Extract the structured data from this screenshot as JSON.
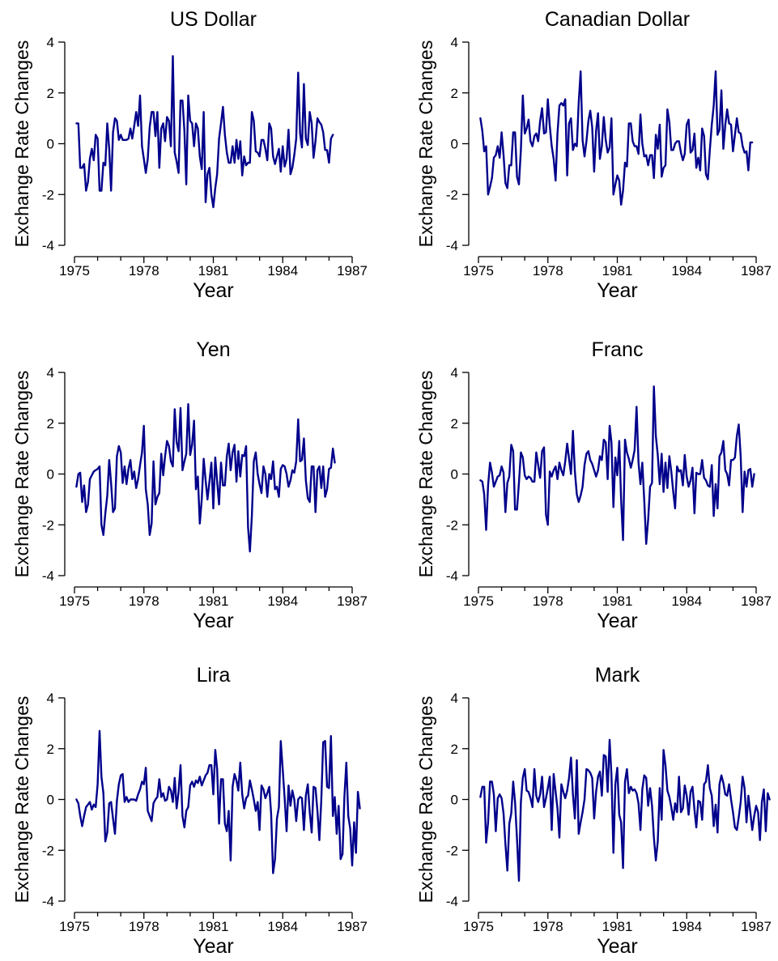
{
  "colors": {
    "series": "#00008b",
    "axis": "#000000"
  },
  "chart_data": [
    {
      "type": "line",
      "title": "US Dollar",
      "xlabel": "Year",
      "ylabel": "Exchange Rate Changes",
      "xlim": [
        1975,
        1987
      ],
      "ylim": [
        -4,
        4
      ],
      "grid": false,
      "xticks": [
        1975,
        1978,
        1981,
        1984,
        1987
      ],
      "yticks": [
        -4,
        -2,
        0,
        2,
        4
      ],
      "series": [
        {
          "x_start": 1975.083,
          "x_step": 0.08333,
          "values": [
            0.8,
            0.8,
            -0.95,
            -0.95,
            -0.8,
            -1.85,
            -1.5,
            -0.6,
            -0.2,
            -0.65,
            0.35,
            0.2,
            -1.85,
            -1.85,
            -0.75,
            -0.85,
            0.8,
            -0.2,
            -1.85,
            0.45,
            1.0,
            0.9,
            0.15,
            0.35,
            0.15,
            0.15,
            0.15,
            0.2,
            0.6,
            0.2,
            0.7,
            1.25,
            0.7,
            1.9,
            -0.1,
            -0.6,
            -1.15,
            -0.6,
            0.65,
            1.25,
            1.25,
            0.3,
            1.25,
            -0.95,
            0.6,
            0.8,
            0.1,
            1.05,
            0.9,
            -0.1,
            3.45,
            -0.35,
            -0.7,
            -1.15,
            1.7,
            1.7,
            0.5,
            -1.6,
            1.9,
            0.9,
            0.8,
            -0.1,
            0.8,
            0.6,
            -0.5,
            -1.0,
            1.25,
            -2.3,
            -1.2,
            -0.95,
            -2.0,
            -2.5,
            -1.75,
            -1.2,
            0.2,
            0.8,
            1.45,
            0.35,
            -0.35,
            -0.75,
            -0.75,
            -0.1,
            -0.75,
            0.15,
            -0.6,
            0.1,
            -1.25,
            -0.5,
            -0.85,
            -0.75,
            -0.75,
            1.25,
            0.9,
            -0.3,
            -0.35,
            -0.5,
            0.15,
            0.15,
            -0.2,
            -0.65,
            0.8,
            0.6,
            -0.5,
            -0.8,
            -0.5,
            -0.2,
            -1.1,
            -0.1,
            -0.9,
            -0.6,
            0.55,
            -1.2,
            -0.95,
            -0.45,
            0.2,
            2.8,
            0.4,
            -0.15,
            2.35,
            0.2,
            -0.05,
            1.25,
            0.8,
            -0.55,
            0.1,
            1.0,
            0.85,
            0.75,
            0.45,
            -0.25,
            -0.25,
            -0.75,
            0.2,
            0.35
          ]
        }
      ]
    },
    {
      "type": "line",
      "title": "Canadian Dollar",
      "xlabel": "Year",
      "ylabel": "Exchange Rate Changes",
      "xlim": [
        1975,
        1987
      ],
      "ylim": [
        -4,
        4
      ],
      "grid": false,
      "xticks": [
        1975,
        1978,
        1981,
        1984,
        1987
      ],
      "yticks": [
        -4,
        -2,
        0,
        2,
        4
      ],
      "series": [
        {
          "x_start": 1975.083,
          "x_step": 0.08333,
          "values": [
            1.0,
            0.5,
            -0.3,
            -0.1,
            -2.0,
            -1.7,
            -1.35,
            -0.55,
            -0.45,
            -0.1,
            -0.55,
            0.45,
            -0.45,
            -1.55,
            -1.75,
            -0.85,
            -0.85,
            0.45,
            0.45,
            -1.3,
            -1.6,
            -0.25,
            1.9,
            0.4,
            0.6,
            0.95,
            0.1,
            -0.1,
            0.3,
            0.4,
            0.1,
            0.9,
            1.4,
            0.4,
            0.45,
            1.75,
            0.7,
            -0.1,
            -0.6,
            -1.45,
            0.4,
            1.5,
            1.6,
            1.5,
            1.75,
            -1.25,
            0.8,
            1.0,
            -0.25,
            0.0,
            -0.1,
            1.6,
            2.85,
            0.15,
            -0.5,
            0.1,
            0.9,
            1.3,
            0.65,
            -1.1,
            0.5,
            1.2,
            -0.6,
            -0.1,
            1.05,
            0.15,
            -0.35,
            -0.15,
            1.0,
            -2.0,
            -1.6,
            -1.25,
            -1.45,
            -2.4,
            -1.85,
            -0.75,
            -0.9,
            0.8,
            0.8,
            0.1,
            -0.1,
            -0.1,
            -0.4,
            1.15,
            0.0,
            -0.5,
            -0.45,
            -0.85,
            -0.45,
            -0.45,
            -1.35,
            0.35,
            -0.2,
            0.75,
            -1.3,
            -0.95,
            -0.85,
            1.35,
            0.85,
            -0.25,
            -0.25,
            0.0,
            0.1,
            0.1,
            -0.35,
            -0.65,
            -0.4,
            0.75,
            0.95,
            -0.35,
            -0.25,
            0.4,
            -0.95,
            -0.55,
            -1.05,
            0.6,
            0.3,
            -1.2,
            -1.4,
            -0.25,
            0.75,
            1.5,
            2.85,
            0.35,
            0.55,
            2.1,
            -0.2,
            0.75,
            1.35,
            0.8,
            0.75,
            -0.3,
            0.35,
            1.0,
            0.45,
            0.4,
            -0.1,
            -0.35,
            -0.3,
            -1.05,
            0.05,
            0.05
          ]
        }
      ]
    },
    {
      "type": "line",
      "title": "Yen",
      "xlabel": "Year",
      "ylabel": "Exchange Rate Changes",
      "xlim": [
        1975,
        1987
      ],
      "ylim": [
        -4,
        4
      ],
      "grid": false,
      "xticks": [
        1975,
        1978,
        1981,
        1984,
        1987
      ],
      "yticks": [
        -4,
        -2,
        0,
        2,
        4
      ],
      "series": [
        {
          "x_start": 1975.083,
          "x_step": 0.08333,
          "values": [
            -0.5,
            0.0,
            0.05,
            -1.1,
            -0.45,
            -1.5,
            -1.2,
            -0.2,
            -0.05,
            0.1,
            0.15,
            0.2,
            0.3,
            -2.0,
            -2.4,
            -1.55,
            -0.85,
            0.55,
            -0.35,
            -1.5,
            -1.35,
            0.7,
            1.1,
            0.85,
            -0.35,
            0.3,
            -0.4,
            0.2,
            0.55,
            -0.2,
            0.1,
            -0.55,
            -0.2,
            0.35,
            0.85,
            1.9,
            -0.6,
            -1.2,
            -2.4,
            -1.95,
            0.5,
            -1.2,
            -0.9,
            -0.75,
            0.8,
            -0.05,
            0.7,
            1.3,
            1.1,
            0.5,
            0.3,
            2.55,
            1.25,
            0.9,
            2.6,
            0.15,
            0.5,
            0.8,
            2.75,
            0.75,
            1.15,
            2.1,
            -0.6,
            -0.1,
            -1.95,
            -1.0,
            0.6,
            -0.25,
            -1.0,
            -0.3,
            0.45,
            -1.35,
            0.65,
            -0.3,
            -1.2,
            0.45,
            -0.45,
            -0.45,
            0.7,
            1.2,
            0.15,
            0.85,
            1.15,
            -0.3,
            0.9,
            -0.1,
            0.75,
            0.7,
            1.1,
            -2.1,
            -3.05,
            -1.65,
            0.5,
            0.85,
            0.0,
            -0.4,
            -0.75,
            0.3,
            0.0,
            -0.9,
            0.0,
            -0.2,
            0.5,
            -0.6,
            -0.5,
            -0.9,
            0.2,
            0.35,
            0.3,
            0.0,
            -0.5,
            -0.25,
            0.15,
            0.05,
            0.5,
            2.15,
            0.5,
            0.55,
            1.4,
            -0.25,
            -0.95,
            -1.1,
            0.3,
            0.3,
            -1.5,
            0.15,
            0.3,
            -0.55,
            0.3,
            -0.9,
            -0.6,
            0.2,
            0.25,
            1.0,
            0.45
          ]
        }
      ]
    },
    {
      "type": "line",
      "title": "Franc",
      "xlabel": "Year",
      "ylabel": "Exchange Rate Changes",
      "xlim": [
        1975,
        1987
      ],
      "ylim": [
        -4,
        4
      ],
      "grid": false,
      "xticks": [
        1975,
        1978,
        1981,
        1984,
        1987
      ],
      "yticks": [
        -4,
        -2,
        0,
        2,
        4
      ],
      "series": [
        {
          "x_start": 1975.083,
          "x_step": 0.08333,
          "values": [
            -0.25,
            -0.3,
            -0.8,
            -2.2,
            -0.45,
            0.45,
            0.05,
            -0.5,
            -0.3,
            -0.1,
            -0.05,
            0.3,
            0.05,
            -1.5,
            -0.35,
            -0.1,
            1.15,
            0.9,
            -1.4,
            -1.4,
            -0.35,
            0.85,
            0.65,
            -0.05,
            -0.2,
            -0.1,
            -0.15,
            -0.3,
            -0.3,
            0.85,
            0.35,
            -0.15,
            0.9,
            1.05,
            -1.6,
            -2.0,
            0.1,
            -0.1,
            0.15,
            0.3,
            -0.2,
            0.45,
            0.15,
            -0.05,
            0.5,
            1.2,
            0.6,
            0.0,
            1.7,
            0.1,
            -0.8,
            -1.1,
            -0.85,
            -0.5,
            0.35,
            0.8,
            0.9,
            0.55,
            0.4,
            0.15,
            -0.1,
            0.15,
            0.7,
            0.55,
            1.35,
            1.25,
            -0.2,
            1.9,
            1.25,
            -1.3,
            0.65,
            -0.05,
            1.3,
            -1.0,
            -2.6,
            1.35,
            0.85,
            0.6,
            0.25,
            0.55,
            0.95,
            2.65,
            0.45,
            -0.4,
            0.45,
            -1.05,
            -2.75,
            -1.8,
            -0.5,
            -0.35,
            3.45,
            1.5,
            0.75,
            -0.4,
            0.8,
            -0.7,
            0.45,
            -0.55,
            0.7,
            0.1,
            -0.7,
            -1.35,
            0.3,
            0.1,
            0.15,
            -0.45,
            0.75,
            -0.1,
            -0.5,
            -0.25,
            0.25,
            -1.55,
            0.05,
            0.0,
            0.0,
            0.55,
            -0.15,
            -0.25,
            -0.45,
            -0.5,
            0.35,
            -1.65,
            -0.4,
            -1.35,
            0.7,
            0.85,
            1.3,
            0.15,
            0.0,
            -0.45,
            0.55,
            0.55,
            0.65,
            1.5,
            1.95,
            0.7,
            -1.5,
            0.1,
            -0.5,
            0.15,
            0.2,
            -0.5,
            0.0
          ]
        }
      ]
    },
    {
      "type": "line",
      "title": "Lira",
      "xlabel": "Year",
      "ylabel": "Exchange Rate Changes",
      "xlim": [
        1975,
        1987
      ],
      "ylim": [
        -4,
        4
      ],
      "grid": false,
      "xticks": [
        1975,
        1978,
        1981,
        1984,
        1987
      ],
      "yticks": [
        -4,
        -2,
        0,
        2,
        4
      ],
      "series": [
        {
          "x_start": 1975.083,
          "x_step": 0.08333,
          "values": [
            0.0,
            -0.15,
            -0.65,
            -1.05,
            -0.65,
            -0.3,
            -0.2,
            -0.1,
            -0.4,
            -0.2,
            -0.3,
            0.6,
            2.7,
            0.9,
            0.25,
            -1.65,
            -1.3,
            -0.15,
            -0.1,
            -0.75,
            -1.35,
            -0.05,
            0.6,
            0.95,
            1.0,
            -0.1,
            0.1,
            -0.1,
            0.0,
            0.0,
            0.0,
            -0.05,
            0.2,
            0.4,
            0.7,
            0.6,
            1.25,
            -0.45,
            -0.65,
            -0.85,
            -0.15,
            0.0,
            0.1,
            0.8,
            0.1,
            0.25,
            -0.05,
            0.0,
            0.5,
            0.35,
            -0.1,
            0.85,
            -0.35,
            0.3,
            1.35,
            -0.65,
            -1.1,
            -0.45,
            -0.3,
            0.55,
            0.7,
            0.5,
            0.75,
            0.65,
            0.9,
            0.55,
            0.75,
            0.95,
            1.05,
            1.35,
            1.35,
            0.2,
            1.95,
            1.2,
            -0.95,
            0.8,
            0.8,
            -0.95,
            -1.25,
            -0.45,
            -2.4,
            0.5,
            1.0,
            0.75,
            0.35,
            1.45,
            0.2,
            -0.35,
            0.05,
            0.15,
            0.75,
            0.4,
            0.0,
            -0.45,
            -0.1,
            -1.2,
            0.55,
            0.4,
            0.05,
            0.25,
            0.5,
            -0.55,
            -2.9,
            -2.35,
            -0.75,
            -0.3,
            2.3,
            1.2,
            0.05,
            -1.25,
            0.55,
            -0.25,
            0.35,
            0.0,
            -0.85,
            0.0,
            0.1,
            0.05,
            -1.2,
            0.15,
            0.6,
            -0.5,
            -1.3,
            0.5,
            0.45,
            -0.45,
            -1.6,
            0.0,
            2.25,
            2.3,
            0.5,
            0.45,
            2.5,
            -0.65,
            0.1,
            -1.35,
            -0.25,
            -2.35,
            -2.15,
            0.1,
            1.45,
            -0.65,
            -1.15,
            -2.6,
            -0.9,
            -2.1,
            0.3,
            -0.35
          ]
        }
      ]
    },
    {
      "type": "line",
      "title": "Mark",
      "xlabel": "Year",
      "ylabel": "Exchange Rate Changes",
      "xlim": [
        1975,
        1987
      ],
      "ylim": [
        -4,
        4
      ],
      "grid": false,
      "xticks": [
        1975,
        1978,
        1981,
        1984,
        1987
      ],
      "yticks": [
        -4,
        -2,
        0,
        2,
        4
      ],
      "series": [
        {
          "x_start": 1975.083,
          "x_step": 0.08333,
          "values": [
            0.1,
            0.5,
            0.5,
            -1.7,
            -0.9,
            0.7,
            0.7,
            0.2,
            -1.25,
            0.05,
            0.2,
            0.05,
            -0.55,
            -1.75,
            -2.8,
            -0.95,
            -0.55,
            0.7,
            -0.1,
            -1.55,
            -3.2,
            -0.1,
            0.85,
            1.2,
            0.35,
            0.3,
            0.05,
            -0.3,
            1.2,
            0.15,
            -0.1,
            0.2,
            0.9,
            -0.3,
            0.05,
            0.45,
            0.9,
            -1.2,
            1.0,
            0.3,
            -0.35,
            -1.5,
            0.6,
            0.3,
            0.05,
            0.35,
            0.85,
            1.65,
            0.2,
            -0.75,
            1.55,
            -1.35,
            -0.9,
            -0.5,
            0.0,
            1.2,
            1.15,
            1.05,
            0.85,
            -0.75,
            0.3,
            0.9,
            1.1,
            0.15,
            1.75,
            1.7,
            0.3,
            2.35,
            0.95,
            -2.1,
            0.6,
            1.25,
            -0.6,
            -0.9,
            -2.7,
            0.7,
            1.2,
            0.25,
            0.5,
            0.35,
            0.4,
            0.25,
            -0.15,
            -1.2,
            0.4,
            0.95,
            0.85,
            -0.25,
            0.45,
            -0.25,
            -1.5,
            -2.4,
            -1.65,
            0.45,
            -0.8,
            1.95,
            1.35,
            0.35,
            0.1,
            -0.3,
            -0.8,
            -0.15,
            -0.5,
            0.9,
            -0.5,
            -0.35,
            0.55,
            0.15,
            -0.6,
            0.3,
            0.5,
            -0.4,
            -1.1,
            -0.05,
            -0.1,
            -0.8,
            0.6,
            0.7,
            1.35,
            0.45,
            0.15,
            -1.05,
            -0.2,
            -1.3,
            0.6,
            0.95,
            0.65,
            0.2,
            0.15,
            0.6,
            0.0,
            -0.5,
            -1.1,
            -1.2,
            -0.7,
            -0.1,
            0.9,
            0.45,
            -0.9,
            0.15,
            -0.5,
            -1.2,
            -0.65,
            -0.25,
            -0.5,
            -1.6,
            -0.1,
            0.4,
            -1.25,
            0.25,
            0.0
          ]
        }
      ]
    }
  ]
}
